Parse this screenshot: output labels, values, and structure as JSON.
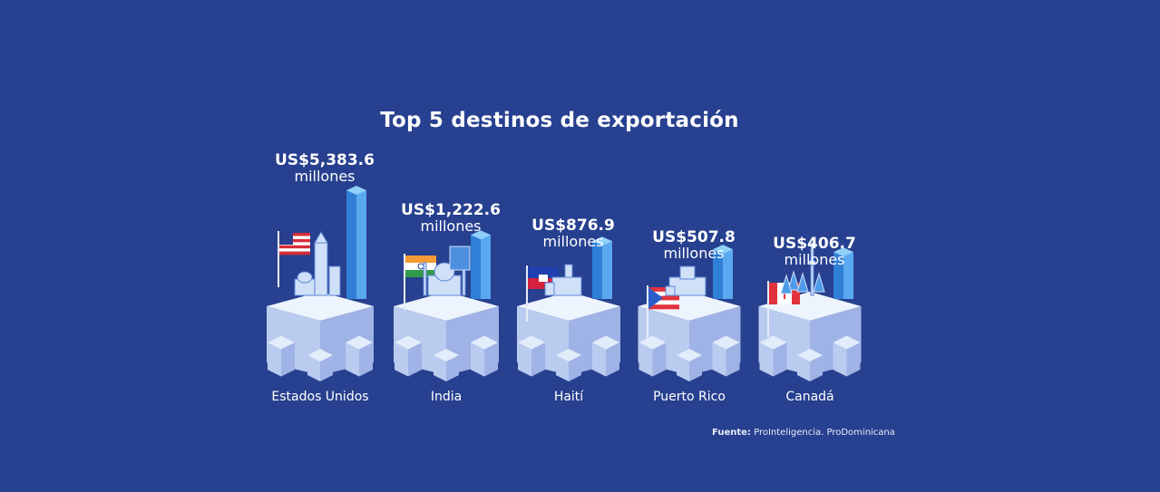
{
  "title": "Top 5 destinos de exportación",
  "source": {
    "label": "Fuente:",
    "text": "ProInteligencia. ProDominicana"
  },
  "colors": {
    "background": "#27408f",
    "text": "#ffffff",
    "block_top": "#e2ecfb",
    "block_left": "#b9cbef",
    "block_right": "#9fb3e6",
    "tower": "#5aa9ef",
    "tower_light": "#8fd0fa",
    "tower_dark": "#2f7fd6"
  },
  "chart_data": {
    "type": "bar",
    "title": "Top 5 destinos de exportación",
    "categories": [
      "Estados Unidos",
      "India",
      "Haití",
      "Puerto Rico",
      "Canadá"
    ],
    "values": [
      5383.6,
      1222.6,
      876.9,
      507.8,
      406.7
    ],
    "value_labels": [
      "US$5,383.6",
      "US$1,222.6",
      "US$876.9",
      "US$507.8",
      "US$406.7"
    ],
    "unit_label": "millones",
    "flag_icons": [
      "usa-flag-icon",
      "india-flag-icon",
      "haiti-flag-icon",
      "puerto-rico-flag-icon",
      "canada-flag-icon"
    ],
    "landmark_icons": [
      "city-skyline-icon",
      "taj-mahal-icon",
      "palace-icon",
      "fortress-icon",
      "cn-tower-forest-icon"
    ]
  }
}
